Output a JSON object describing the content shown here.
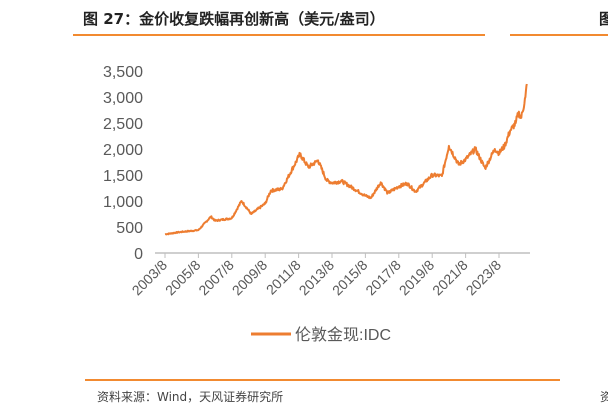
{
  "header": {
    "title": "图 27：金价收复跌幅再创新高（美元/盎司）",
    "next_title": "图"
  },
  "footer": {
    "source": "资料来源：Wind，天风证券研究所",
    "next_source": "资"
  },
  "colors": {
    "accent": "#f28a30",
    "series": "#ed7d31",
    "axis": "#bfbfbf",
    "text": "#595959"
  },
  "chart_data": {
    "type": "line",
    "title": "",
    "xlabel": "",
    "ylabel": "",
    "ylim": [
      0,
      3500
    ],
    "yticks": [
      "0",
      "500",
      "1,000",
      "1,500",
      "2,000",
      "2,500",
      "3,000",
      "3,500"
    ],
    "xticks": [
      "2003/8",
      "2005/8",
      "2007/8",
      "2009/8",
      "2011/8",
      "2013/8",
      "2015/8",
      "2017/8",
      "2019/8",
      "2021/8",
      "2023/8"
    ],
    "grid": false,
    "legend_position": "bottom",
    "series": [
      {
        "name": "伦敦金现:IDC",
        "points": [
          [
            "2003/8",
            360
          ],
          [
            "2004/6",
            400
          ],
          [
            "2005/8",
            440
          ],
          [
            "2006/5",
            700
          ],
          [
            "2006/8",
            620
          ],
          [
            "2007/8",
            670
          ],
          [
            "2008/3",
            1000
          ],
          [
            "2008/10",
            750
          ],
          [
            "2009/8",
            950
          ],
          [
            "2009/12",
            1200
          ],
          [
            "2010/8",
            1230
          ],
          [
            "2011/8",
            1850
          ],
          [
            "2011/9",
            1900
          ],
          [
            "2012/3",
            1650
          ],
          [
            "2012/10",
            1780
          ],
          [
            "2013/4",
            1400
          ],
          [
            "2013/8",
            1350
          ],
          [
            "2014/3",
            1380
          ],
          [
            "2014/8",
            1300
          ],
          [
            "2015/8",
            1100
          ],
          [
            "2015/12",
            1060
          ],
          [
            "2016/7",
            1360
          ],
          [
            "2016/12",
            1150
          ],
          [
            "2017/8",
            1280
          ],
          [
            "2018/2",
            1340
          ],
          [
            "2018/8",
            1180
          ],
          [
            "2019/8",
            1500
          ],
          [
            "2020/3",
            1480
          ],
          [
            "2020/8",
            2060
          ],
          [
            "2021/3",
            1700
          ],
          [
            "2021/8",
            1800
          ],
          [
            "2022/3",
            2000
          ],
          [
            "2022/10",
            1630
          ],
          [
            "2023/5",
            2000
          ],
          [
            "2023/8",
            1920
          ],
          [
            "2023/12",
            2060
          ],
          [
            "2024/4",
            2350
          ],
          [
            "2024/8",
            2500
          ],
          [
            "2024/10",
            2700
          ],
          [
            "2024/12",
            2600
          ],
          [
            "2025/3",
            3000
          ],
          [
            "2025/4",
            3250
          ]
        ]
      }
    ]
  }
}
